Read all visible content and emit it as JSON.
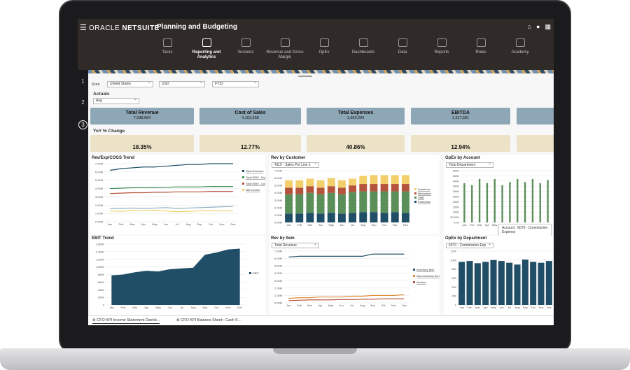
{
  "app": {
    "brand_oracle": "ORACLE",
    "brand_netsuite": "NETSUITE",
    "title": "Planning and Budgeting",
    "icons": [
      "home-icon",
      "mic-icon",
      "apps-grid-icon"
    ]
  },
  "nav": {
    "items": [
      {
        "label": "Tasks",
        "active": false
      },
      {
        "label": "Reporting and Analytics",
        "active": true
      },
      {
        "label": "Versions",
        "active": false
      },
      {
        "label": "Revenue and Gross Margin",
        "active": false
      },
      {
        "label": "OpEx",
        "active": false
      },
      {
        "label": "Dashboards",
        "active": false
      },
      {
        "label": "Data",
        "active": false
      },
      {
        "label": "Reports",
        "active": false
      },
      {
        "label": "Roles",
        "active": false
      },
      {
        "label": "Academy",
        "active": false
      }
    ]
  },
  "steps": [
    "1",
    "2",
    "3"
  ],
  "filters": {
    "scen_label": "Scen",
    "country": "United States",
    "currency": "USD",
    "year": "FY22"
  },
  "actuals": {
    "label": "Actuals",
    "month": "Aug"
  },
  "kpis": [
    {
      "title": "Total Revenue",
      "value": "7,038,684"
    },
    {
      "title": "Cost of Sales",
      "value": "4,162,668"
    },
    {
      "title": "Total Expenses",
      "value": "1,659,204"
    },
    {
      "title": "EBITDA",
      "value": "1,217,561"
    }
  ],
  "yoy": {
    "label": "YoY % Change",
    "values": [
      "18.35%",
      "12.77%",
      "40.86%",
      "12.94%"
    ]
  },
  "panels": {
    "rev_exp_cogs": {
      "title": "Rev/Exp/COGS Trend"
    },
    "rev_by_customer": {
      "title": "Rev by Customer",
      "select": "4110 - Sales Pot Line 1"
    },
    "opex_by_account": {
      "title": "OpEx by Account",
      "select": "Total Department"
    },
    "ebit_trend": {
      "title": "EBIT Trend"
    },
    "rev_by_item": {
      "title": "Rev by Item",
      "select": "Total Revenue"
    },
    "opex_by_department": {
      "title": "OpEx by Department",
      "select": "6070 - Commission Exp"
    }
  },
  "tooltip": {
    "line1": "Account : 6070 - Commission",
    "line2": "Expense"
  },
  "bottom_tabs": [
    {
      "label": "CFO KPI Income Statement Dashb...",
      "active": true
    },
    {
      "label": "CFO KPI Balance Sheet : Cash F...",
      "active": false
    }
  ],
  "colors": {
    "topbar": "#302b29",
    "kpi": "#8ea7b6",
    "yoy": "#ece2c6",
    "teal_dark": "#1f4e66",
    "green": "#5b8f5a",
    "red": "#b5543c",
    "gold": "#f2cf6b",
    "orange": "#e08b35"
  },
  "chart_data": [
    {
      "type": "line",
      "title": "Rev/Exp/COGS Trend",
      "categories": [
        "Jan",
        "Feb",
        "Mar",
        "Apr",
        "May",
        "Jun",
        "Jul",
        "Aug",
        "Sep",
        "Oct",
        "Nov",
        "Dec"
      ],
      "ytick_labels": [
        "0.00M",
        "1.00M",
        "2.00M",
        "3.00M",
        "4.00M",
        "5.00M",
        "6.00M",
        "7.00M"
      ],
      "ylim": [
        0,
        7
      ],
      "series": [
        {
          "name": "Total Revenue",
          "color": "#1f4e66",
          "values": [
            6.2,
            6.4,
            6.5,
            6.6,
            6.6,
            6.7,
            6.8,
            6.9,
            6.9,
            7.0,
            7.0,
            7.0
          ]
        },
        {
          "name": "Total 5000 - Expenses",
          "color": "#3f8f55",
          "values": [
            4.0,
            4.05,
            4.1,
            4.1,
            4.1,
            4.15,
            4.2,
            4.2,
            4.2,
            4.25,
            4.25,
            4.25
          ]
        },
        {
          "name": "Total 5000 - Cost of Goods Sold",
          "color": "#b5543c",
          "values": [
            3.4,
            3.45,
            3.5,
            3.5,
            3.55,
            3.55,
            3.6,
            3.6,
            3.6,
            3.65,
            3.65,
            3.65
          ]
        },
        {
          "name": "Net Income",
          "color": "#e8d36a",
          "values": [
            1.3,
            1.25,
            1.35,
            1.3,
            1.4,
            1.3,
            1.2,
            1.25,
            1.3,
            1.35,
            1.3,
            1.3
          ]
        },
        {
          "name": "",
          "color": "#8fb0c2",
          "values": [
            1.6,
            1.6,
            1.65,
            1.6,
            1.65,
            1.7,
            1.6,
            1.65,
            1.7,
            1.75,
            1.8,
            1.85
          ]
        }
      ]
    },
    {
      "type": "bar",
      "title": "Rev by Customer",
      "stacked": true,
      "categories": [
        "Jan",
        "Feb",
        "Mar",
        "Apr",
        "May",
        "Jun",
        "Jul",
        "Aug",
        "Sep",
        "Oct",
        "Nov",
        "Dec"
      ],
      "ytick_labels": [
        "0.00M",
        "1.00M",
        "2.00M",
        "3.00M",
        "4.00M",
        "5.00M",
        "6.00M",
        "7.00M"
      ],
      "ylim": [
        0,
        7
      ],
      "series": [
        {
          "name": "Enterprise",
          "color": "#1f4e66",
          "values": [
            1.2,
            1.2,
            1.3,
            1.2,
            1.3,
            1.2,
            1.3,
            1.4,
            1.4,
            1.3,
            1.4,
            1.3
          ]
        },
        {
          "name": "SMB",
          "color": "#5b8f5a",
          "values": [
            2.6,
            2.6,
            2.7,
            2.6,
            2.7,
            2.6,
            2.8,
            2.8,
            2.8,
            2.9,
            2.8,
            2.9
          ]
        },
        {
          "name": "Midmarket",
          "color": "#b5543c",
          "values": [
            0.9,
            0.9,
            0.9,
            0.9,
            0.9,
            0.9,
            0.9,
            1.0,
            1.0,
            1.0,
            1.0,
            1.0
          ]
        },
        {
          "name": "Academic",
          "color": "#f2cf6b",
          "values": [
            1.0,
            1.0,
            1.0,
            1.0,
            1.1,
            1.0,
            0.9,
            1.1,
            1.2,
            1.2,
            1.2,
            1.2
          ]
        }
      ]
    },
    {
      "type": "bar",
      "title": "OpEx by Account",
      "categories": [
        "Jan",
        "Feb",
        "Mar",
        "Apr",
        "May",
        "Jun",
        "Jul",
        "Aug",
        "Sep",
        "Oct",
        "Nov",
        "Dec"
      ],
      "ytick_labels": [
        "0.00",
        "50.00K",
        "100K",
        "150K",
        "200K",
        "250K",
        "300K",
        "350K",
        "400K",
        "450K",
        "500K"
      ],
      "ylim": [
        0,
        500
      ],
      "series": [
        {
          "name": "",
          "color": "#5b8f5a",
          "values": [
            380,
            360,
            420,
            380,
            420,
            360,
            390,
            420,
            390,
            420,
            380,
            410
          ]
        }
      ]
    },
    {
      "type": "area",
      "title": "EBIT Trend",
      "categories": [
        "Jan",
        "Feb",
        "Mar",
        "Apr",
        "May",
        "Jun",
        "Jul",
        "Aug",
        "Sep",
        "Oct",
        "Nov",
        "Dec"
      ],
      "ytick_labels": [
        "0",
        "200K",
        "400K",
        "600K",
        "800K",
        "1,000K",
        "1,200K",
        "1,400K",
        "1,600K"
      ],
      "ylim": [
        0,
        1600
      ],
      "series": [
        {
          "name": "EBIT",
          "color": "#1f4e66",
          "values": [
            780,
            800,
            860,
            900,
            880,
            940,
            960,
            980,
            1320,
            1380,
            1460,
            1480
          ]
        }
      ]
    },
    {
      "type": "line",
      "title": "Rev by Item",
      "categories": [
        "Jan",
        "Feb",
        "Mar",
        "Apr",
        "May",
        "Jun",
        "Jul",
        "Aug",
        "Sep",
        "Oct",
        "Nov",
        "Dec"
      ],
      "ytick_labels": [
        "0.00M",
        "1.00M",
        "2.00M",
        "3.00M",
        "4.00M",
        "5.00M",
        "6.00M",
        "7.00M"
      ],
      "ylim": [
        0,
        7
      ],
      "series": [
        {
          "name": "Inventory Item",
          "color": "#1f4e66",
          "values": [
            6.2,
            6.3,
            6.3,
            6.3,
            6.3,
            6.3,
            6.3,
            6.3,
            6.6,
            6.6,
            6.6,
            6.6
          ]
        },
        {
          "name": "Non-inventory Item",
          "color": "#e08b35",
          "values": [
            0.6,
            0.7,
            0.7,
            0.8,
            0.8,
            0.8,
            0.9,
            0.9,
            1.0,
            1.0,
            1.0,
            1.1
          ]
        },
        {
          "name": "Service",
          "color": "#b5543c",
          "values": [
            0.3,
            0.35,
            0.4,
            0.4,
            0.4,
            0.45,
            0.45,
            0.5,
            0.5,
            0.55,
            0.55,
            0.55
          ]
        }
      ]
    },
    {
      "type": "bar",
      "title": "OpEx by Department",
      "categories": [
        "Jan",
        "Feb",
        "Mar",
        "Apr",
        "May",
        "Jun",
        "Jul",
        "Aug",
        "Sep",
        "Oct",
        "Nov",
        "Dec"
      ],
      "ytick_labels": [
        "0",
        "200",
        "400",
        "600",
        "800",
        "1000",
        "1200"
      ],
      "ylim": [
        0,
        1200
      ],
      "series": [
        {
          "name": "",
          "color": "#1f4e66",
          "values": [
            960,
            980,
            930,
            960,
            1000,
            980,
            940,
            900,
            1010,
            960,
            940,
            980
          ]
        }
      ]
    }
  ]
}
